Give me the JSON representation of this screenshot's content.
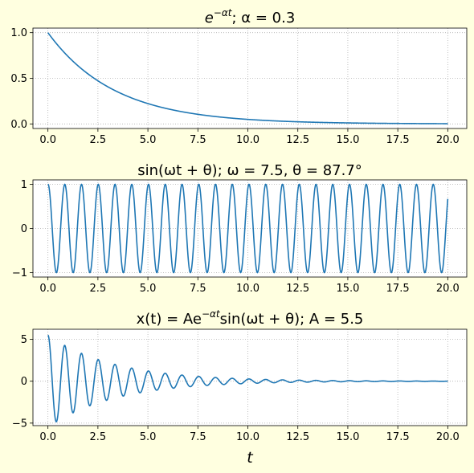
{
  "figure": {
    "background": "#ffffe0",
    "line_color": "#1f77b4",
    "xlabel": "t"
  },
  "chart_data": [
    {
      "type": "line",
      "title": "e^{-αt};   α = 0.3",
      "title_parts": {
        "base": "e",
        "sup": "−αt",
        "rest": ";   α = 0.3"
      },
      "function": "exp(-alpha*t)",
      "params": {
        "alpha": 0.3
      },
      "x_range": [
        0,
        20
      ],
      "xlim": [
        -0.75,
        20.95
      ],
      "ylim": [
        -0.05,
        1.05
      ],
      "xticks": [
        "0.0",
        "2.5",
        "5.0",
        "7.5",
        "10.0",
        "12.5",
        "15.0",
        "17.5",
        "20.0"
      ],
      "yticks": [
        "0.0",
        "0.5",
        "1.0"
      ],
      "grid": true
    },
    {
      "type": "line",
      "title": "sin(ωt + θ);   ω = 7.5, θ = 87.7°",
      "function": "sin(omega*t + theta)",
      "params": {
        "omega": 7.5,
        "theta_deg": 87.7
      },
      "x_range": [
        0,
        20
      ],
      "xlim": [
        -0.75,
        20.95
      ],
      "ylim": [
        -1.1,
        1.1
      ],
      "xticks": [
        "0.0",
        "2.5",
        "5.0",
        "7.5",
        "10.0",
        "12.5",
        "15.0",
        "17.5",
        "20.0"
      ],
      "yticks": [
        "−1",
        "0",
        "1"
      ],
      "grid": true
    },
    {
      "type": "line",
      "title": "x(t) = Ae^{-αt} sin(ωt + θ);   A = 5.5",
      "title_parts": {
        "pre": "x(t) = Ae",
        "sup": "−αt",
        "rest": "sin(ωt + θ);   A = 5.5"
      },
      "function": "A*exp(-alpha*t)*sin(omega*t + theta)",
      "params": {
        "A": 5.5,
        "alpha": 0.3,
        "omega": 7.5,
        "theta_deg": 87.7
      },
      "x_range": [
        0,
        20
      ],
      "xlim": [
        -0.75,
        20.95
      ],
      "ylim": [
        -5.3,
        6.2
      ],
      "xticks": [
        "0.0",
        "2.5",
        "5.0",
        "7.5",
        "10.0",
        "12.5",
        "15.0",
        "17.5",
        "20.0"
      ],
      "yticks": [
        "−5",
        "0",
        "5"
      ],
      "grid": true
    }
  ]
}
